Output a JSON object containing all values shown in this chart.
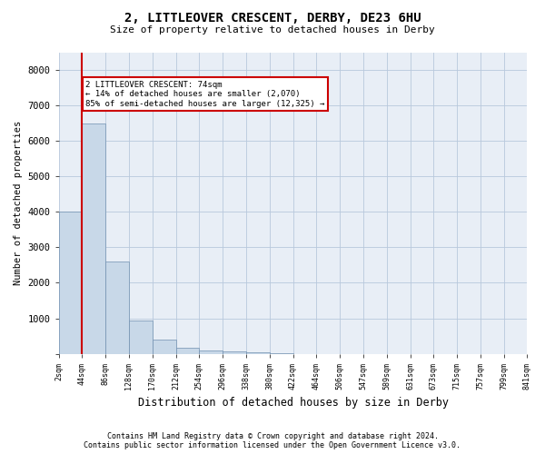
{
  "title_line1": "2, LITTLEOVER CRESCENT, DERBY, DE23 6HU",
  "title_line2": "Size of property relative to detached houses in Derby",
  "xlabel": "Distribution of detached houses by size in Derby",
  "ylabel": "Number of detached properties",
  "footnote1": "Contains HM Land Registry data © Crown copyright and database right 2024.",
  "footnote2": "Contains public sector information licensed under the Open Government Licence v3.0.",
  "annotation_line1": "2 LITTLEOVER CRESCENT: 74sqm",
  "annotation_line2": "← 14% of detached houses are smaller (2,070)",
  "annotation_line3": "85% of semi-detached houses are larger (12,325) →",
  "property_size_sqm": 74,
  "bar_color": "#c8d8e8",
  "bar_edge_color": "#7090b0",
  "marker_color": "#cc0000",
  "background_color": "#ffffff",
  "plot_bg_color": "#e8eef6",
  "grid_color": "#b8c8dc",
  "annotation_box_color": "#cc0000",
  "ylim": [
    0,
    8500
  ],
  "yticks": [
    0,
    1000,
    2000,
    3000,
    4000,
    5000,
    6000,
    7000,
    8000
  ],
  "bin_labels": [
    "2sqm",
    "44sqm",
    "86sqm",
    "128sqm",
    "170sqm",
    "212sqm",
    "254sqm",
    "296sqm",
    "338sqm",
    "380sqm",
    "422sqm",
    "464sqm",
    "506sqm",
    "547sqm",
    "589sqm",
    "631sqm",
    "673sqm",
    "715sqm",
    "757sqm",
    "799sqm",
    "841sqm"
  ],
  "bar_heights": [
    4000,
    6500,
    2600,
    950,
    400,
    170,
    90,
    60,
    40,
    10,
    0,
    0,
    0,
    0,
    0,
    0,
    0,
    0,
    0,
    0
  ]
}
